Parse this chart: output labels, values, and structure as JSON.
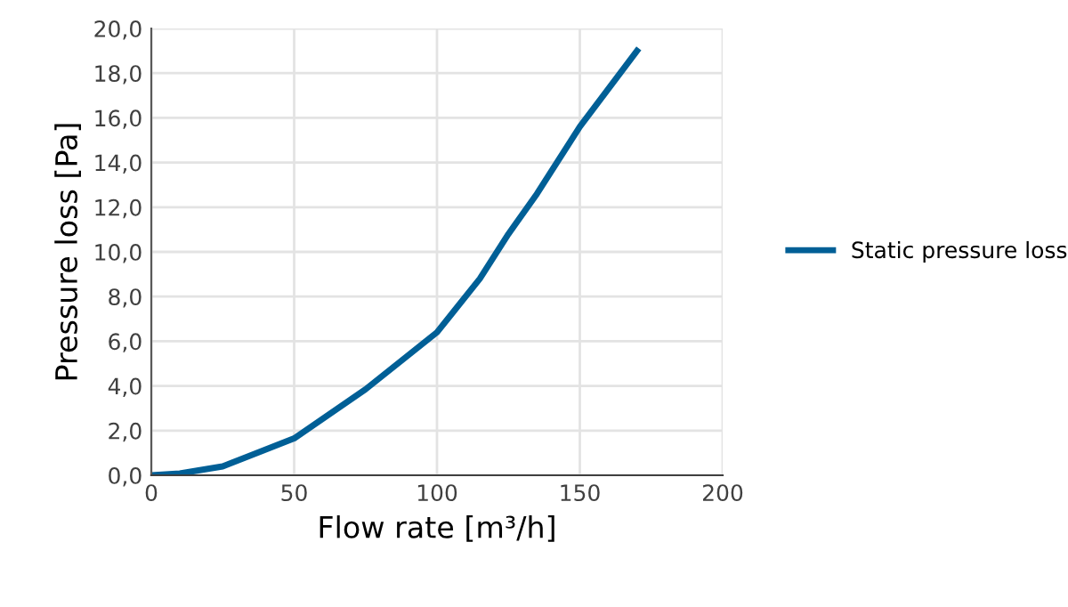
{
  "chart_data": {
    "type": "line",
    "xlabel": "Flow rate [m³/h]",
    "ylabel": "Pressure loss [Pa]",
    "xlim": [
      0,
      200
    ],
    "xticks": [
      0,
      50,
      100,
      150,
      200
    ],
    "ylim": [
      0,
      20
    ],
    "yticks": [
      {
        "value": 0,
        "label": "0,0"
      },
      {
        "value": 2,
        "label": "2,0"
      },
      {
        "value": 4,
        "label": "4,0"
      },
      {
        "value": 6,
        "label": "6,0"
      },
      {
        "value": 8,
        "label": "8,0"
      },
      {
        "value": 10,
        "label": "10,0"
      },
      {
        "value": 12,
        "label": "12,0"
      },
      {
        "value": 14,
        "label": "14,0"
      },
      {
        "value": 16,
        "label": "16,0"
      },
      {
        "value": 18,
        "label": "18,0"
      },
      {
        "value": 20,
        "label": "20,0"
      }
    ],
    "grid": true,
    "legend": "right",
    "marker": "none",
    "line_style": "solid",
    "series": [
      {
        "name": "Static pressure loss",
        "color": "#005f96",
        "x": [
          0,
          10,
          25,
          50,
          75,
          100,
          115,
          125,
          135,
          150,
          170
        ],
        "values": [
          0,
          0.08,
          0.4,
          1.65,
          3.85,
          6.4,
          8.8,
          10.8,
          12.6,
          15.6,
          19.0
        ]
      }
    ]
  }
}
